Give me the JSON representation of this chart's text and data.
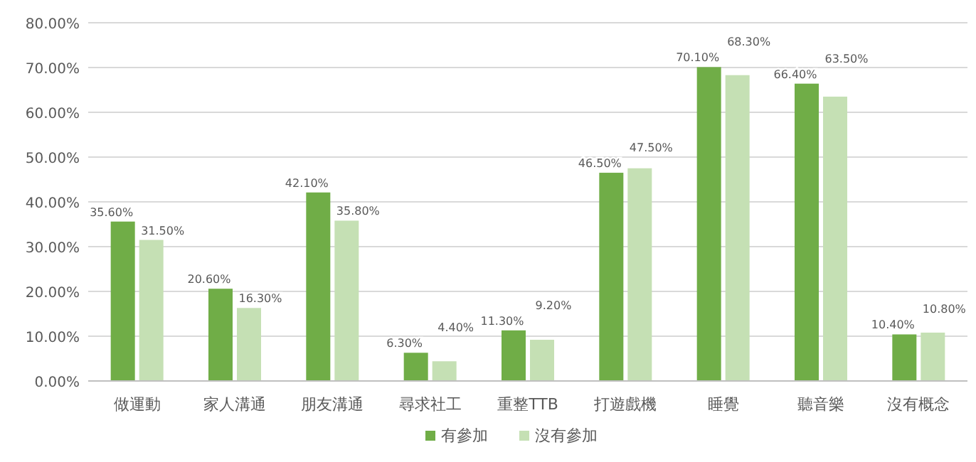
{
  "chart_data": {
    "type": "bar",
    "categories": [
      "做運動",
      "家人溝通",
      "朋友溝通",
      "尋求社工",
      "重整TTB",
      "打遊戲機",
      "睡覺",
      "聽音樂",
      "沒有概念"
    ],
    "series": [
      {
        "name": "有參加",
        "color": "#70ad47",
        "values": [
          35.6,
          20.6,
          42.1,
          6.3,
          11.3,
          46.5,
          70.1,
          66.4,
          10.4
        ],
        "value_labels": [
          "35.60%",
          "20.60%",
          "42.10%",
          "6.30%",
          "11.30%",
          "46.50%",
          "70.10%",
          "66.40%",
          "10.40%"
        ]
      },
      {
        "name": "沒有參加",
        "color": "#c5e0b4",
        "values": [
          31.5,
          16.3,
          35.8,
          4.4,
          9.2,
          47.5,
          68.3,
          63.5,
          10.8
        ],
        "value_labels": [
          "31.50%",
          "16.30%",
          "35.80%",
          "4.40%",
          "9.20%",
          "47.50%",
          "68.30%",
          "63.50%",
          "10.80%"
        ]
      }
    ],
    "ylim": [
      0,
      80
    ],
    "yticks": [
      {
        "value": 0,
        "label": "0.00%"
      },
      {
        "value": 10,
        "label": "10.00%"
      },
      {
        "value": 20,
        "label": "20.00%"
      },
      {
        "value": 30,
        "label": "30.00%"
      },
      {
        "value": 40,
        "label": "40.00%"
      },
      {
        "value": 50,
        "label": "50.00%"
      },
      {
        "value": 60,
        "label": "60.00%"
      },
      {
        "value": 70,
        "label": "70.00%"
      },
      {
        "value": 80,
        "label": "80.00%"
      }
    ],
    "grid": "y",
    "legend": "bottom"
  }
}
